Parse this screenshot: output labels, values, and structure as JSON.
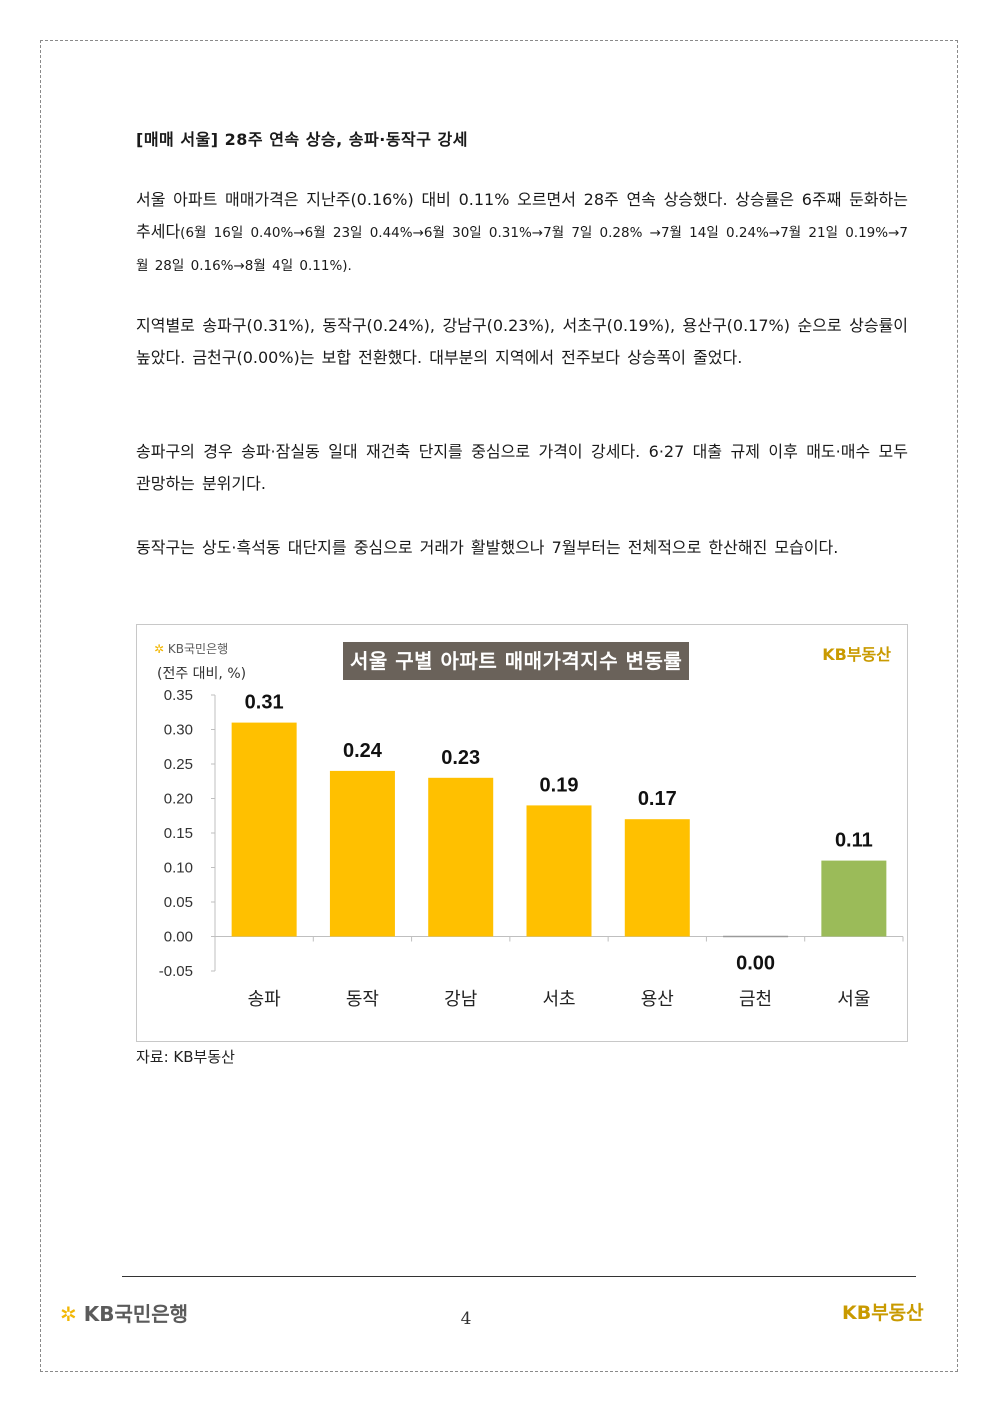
{
  "heading": "[매매 서울] 28주 연속 상승, 송파·동작구 강세",
  "paragraphs": {
    "p1_main": "서울 아파트 매매가격은 지난주(0.16%) 대비 0.11% 오르면서 28주 연속 상승했다. 상승률은 6주째 둔화하는 추세다",
    "p1_detail": "(6월 16일 0.40%→6월 23일 0.44%→6월 30일 0.31%→7월 7일 0.28% →7월 14일 0.24%→7월 21일 0.19%→7월 28일 0.16%→8월 4일 0.11%).",
    "p2": "지역별로 송파구(0.31%), 동작구(0.24%), 강남구(0.23%), 서초구(0.19%), 용산구(0.17%) 순으로 상승률이 높았다. 금천구(0.00%)는 보합 전환했다. 대부분의 지역에서 전주보다 상승폭이 줄었다.",
    "p3": "송파구의 경우 송파·잠실동 일대 재건축 단지를 중심으로 가격이 강세다. 6·27 대출 규제 이후 매도·매수 모두 관망하는 분위기다.",
    "p4": "동작구는 상도·흑석동 대단지를 중심으로 거래가 활발했으나 7월부터는 전체적으로 한산해진 모습이다."
  },
  "chart_header": {
    "bank_logo": "KB국민은행",
    "estate_logo": "KB부동산"
  },
  "chart_data": {
    "type": "bar",
    "title": "서울 구별 아파트 매매가격지수 변동률",
    "ylabel": "(전주 대비, %)",
    "categories": [
      "송파",
      "동작",
      "강남",
      "서초",
      "용산",
      "금천",
      "서울"
    ],
    "values": [
      0.31,
      0.24,
      0.23,
      0.19,
      0.17,
      0.0,
      0.11
    ],
    "value_labels": [
      "0.31",
      "0.24",
      "0.23",
      "0.19",
      "0.17",
      "0.00",
      "0.11"
    ],
    "bar_colors": [
      "#ffc000",
      "#ffc000",
      "#ffc000",
      "#ffc000",
      "#ffc000",
      "#ffc000",
      "#9bbb59"
    ],
    "ylim": [
      -0.05,
      0.35
    ],
    "yticks": [
      "0.35",
      "0.30",
      "0.25",
      "0.20",
      "0.15",
      "0.10",
      "0.05",
      "0.00",
      "-0.05"
    ],
    "ytick_values": [
      0.35,
      0.3,
      0.25,
      0.2,
      0.15,
      0.1,
      0.05,
      0.0,
      -0.05
    ],
    "grid": false,
    "legend": "none"
  },
  "source": "자료: KB부동산",
  "footer": {
    "bank_logo": "KB국민은행",
    "page_number": "4",
    "estate_logo": "KB부동산"
  },
  "colors": {
    "bar_district": "#ffc000",
    "bar_seoul": "#9bbb59",
    "title_bg": "#6a625a",
    "brand_gold": "#c99a00",
    "brand_star": "#f2b705"
  }
}
